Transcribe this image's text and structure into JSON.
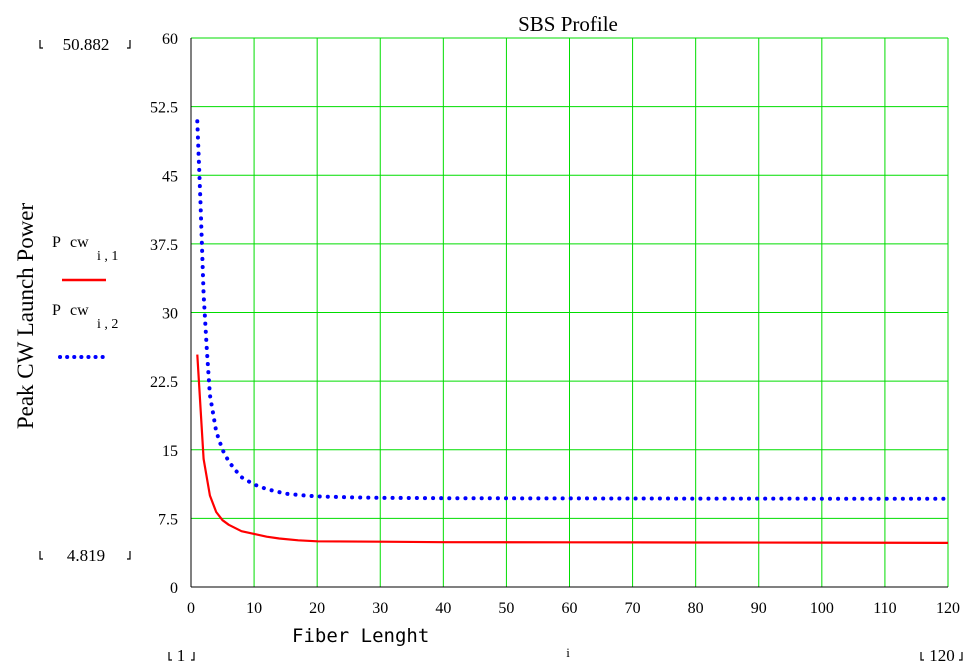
{
  "chart_data": {
    "type": "line",
    "title": "SBS Profile",
    "xlabel": "Fiber Lenght",
    "xlabel_var": "i",
    "ylabel": "Peak CW Launch Power",
    "xlim": [
      0,
      120
    ],
    "ylim": [
      0,
      60
    ],
    "x_ticks": [
      0,
      10,
      20,
      30,
      40,
      50,
      60,
      70,
      80,
      90,
      100,
      110,
      120
    ],
    "y_ticks": [
      0,
      7.5,
      15,
      22.5,
      30,
      37.5,
      45,
      52.5,
      60
    ],
    "y_tick_labels": [
      "0",
      "7.5",
      "15",
      "22.5",
      "30",
      "37.5",
      "45",
      "52.5",
      "60"
    ],
    "x_range_markers": {
      "min": "1",
      "max": "120"
    },
    "y_range_markers": {
      "max": "50.882",
      "min": "4.819"
    },
    "grid": true,
    "grid_color": "#00dd00",
    "legend_placement": "left",
    "series": [
      {
        "name": "P cw i,1",
        "legend_main": "P",
        "legend_sub": "cw",
        "legend_index": "i , 1",
        "style": "solid",
        "color": "#ff0000",
        "x": [
          1,
          2,
          3,
          4,
          5,
          6,
          8,
          10,
          12,
          14,
          17,
          20,
          30,
          40,
          60,
          80,
          100,
          120
        ],
        "y": [
          25.4,
          14.0,
          10.0,
          8.2,
          7.3,
          6.8,
          6.1,
          5.8,
          5.5,
          5.3,
          5.1,
          5.0,
          4.95,
          4.9,
          4.88,
          4.86,
          4.85,
          4.82
        ]
      },
      {
        "name": "P cw i,2",
        "legend_main": "P",
        "legend_sub": "cw",
        "legend_index": "i , 2",
        "style": "dotted",
        "color": "#0000ff",
        "x": [
          1,
          1.5,
          2,
          2.5,
          3,
          4,
          5,
          6,
          7,
          8,
          10,
          12,
          15,
          18,
          20,
          25,
          30,
          40,
          60,
          80,
          100,
          120
        ],
        "y": [
          50.9,
          42.0,
          32.0,
          26.0,
          21.0,
          17.0,
          15.0,
          13.7,
          12.8,
          12.0,
          11.2,
          10.7,
          10.2,
          10.0,
          9.9,
          9.8,
          9.75,
          9.7,
          9.68,
          9.66,
          9.65,
          9.64
        ]
      }
    ]
  }
}
